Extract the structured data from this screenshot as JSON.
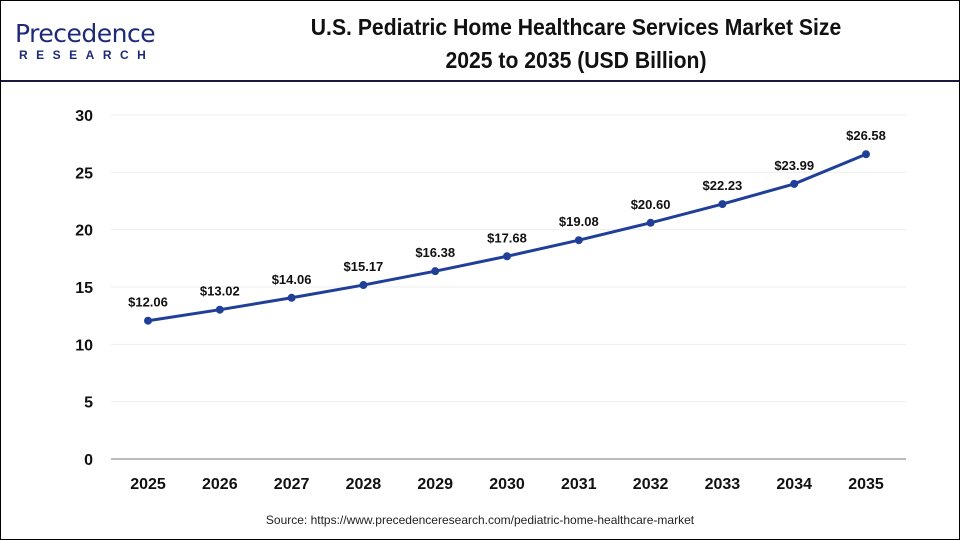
{
  "header": {
    "logo_text": "Precedence",
    "logo_sub": "RESEARCH",
    "title_line1": "U.S. Pediatric Home Healthcare Services Market Size",
    "title_line2": "2025 to 2035 (USD Billion)"
  },
  "chart_data": {
    "type": "line",
    "title": "U.S. Pediatric Home Healthcare Services Market Size 2025 to 2035 (USD Billion)",
    "categories": [
      "2025",
      "2026",
      "2027",
      "2028",
      "2029",
      "2030",
      "2031",
      "2032",
      "2033",
      "2034",
      "2035"
    ],
    "series": [
      {
        "values": [
          12.06,
          13.02,
          14.06,
          15.17,
          16.38,
          17.68,
          19.08,
          20.6,
          22.23,
          23.99,
          26.58
        ]
      }
    ],
    "data_labels": [
      "$12.06",
      "$13.02",
      "$14.06",
      "$15.17",
      "$16.38",
      "$17.68",
      "$19.08",
      "$20.60",
      "$22.23",
      "$23.99",
      "$26.58"
    ],
    "yticks": [
      0,
      5,
      10,
      15,
      20,
      25,
      30
    ],
    "ylim": [
      0,
      30
    ],
    "grid": true,
    "line_color": "#1f3f99"
  },
  "source": "Source: https://www.precedenceresearch.com/pediatric-home-healthcare-market"
}
